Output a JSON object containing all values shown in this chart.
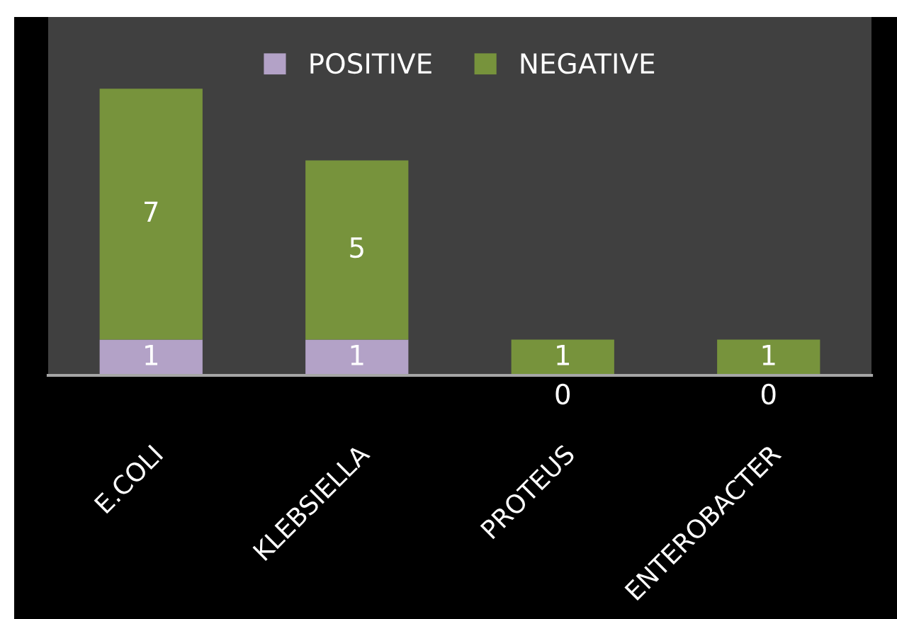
{
  "chart_data": {
    "type": "bar",
    "stacked": true,
    "categories": [
      "E.COLI",
      "KLEBSIELLA",
      "PROTEUS",
      "ENTEROBACTER"
    ],
    "series": [
      {
        "name": "POSITIVE",
        "color": "#b3a2c7",
        "values": [
          1,
          1,
          0,
          0
        ]
      },
      {
        "name": "NEGATIVE",
        "color": "#77933c",
        "values": [
          7,
          5,
          1,
          1
        ]
      }
    ],
    "data_labels": true,
    "legend": "top"
  }
}
